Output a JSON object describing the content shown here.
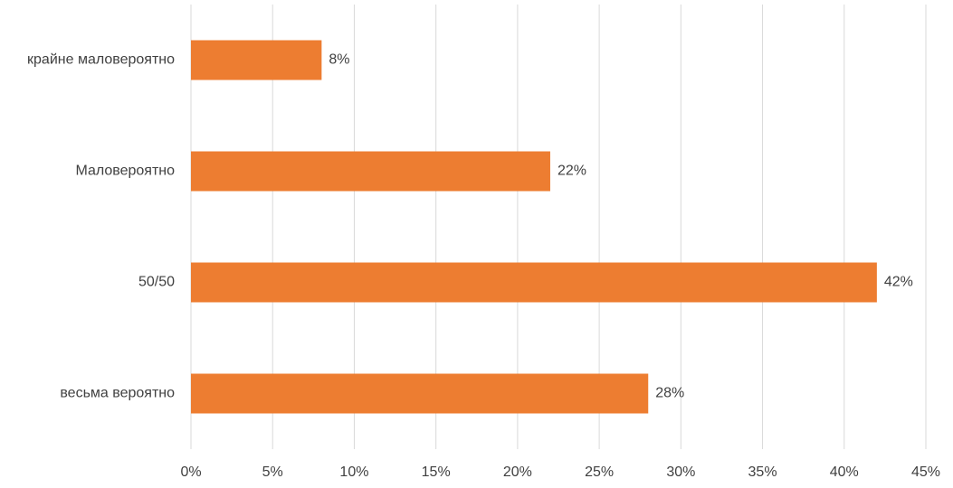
{
  "chart_data": {
    "type": "hbar",
    "categories": [
      "крайне маловероятно",
      "Маловероятно",
      "50/50",
      "весьма вероятно"
    ],
    "values": [
      8,
      22,
      42,
      28
    ],
    "value_labels": [
      "8%",
      "22%",
      "42%",
      "28%"
    ],
    "color": "#ed7d31",
    "xlim": [
      0,
      45
    ],
    "xticks": [
      {
        "value": 0,
        "label": "0%"
      },
      {
        "value": 5,
        "label": "5%"
      },
      {
        "value": 10,
        "label": "10%"
      },
      {
        "value": 15,
        "label": "15%"
      },
      {
        "value": 20,
        "label": "20%"
      },
      {
        "value": 25,
        "label": "25%"
      },
      {
        "value": 30,
        "label": "30%"
      },
      {
        "value": 35,
        "label": "35%"
      },
      {
        "value": 40,
        "label": "40%"
      },
      {
        "value": 45,
        "label": "45%"
      }
    ],
    "grid": true
  }
}
